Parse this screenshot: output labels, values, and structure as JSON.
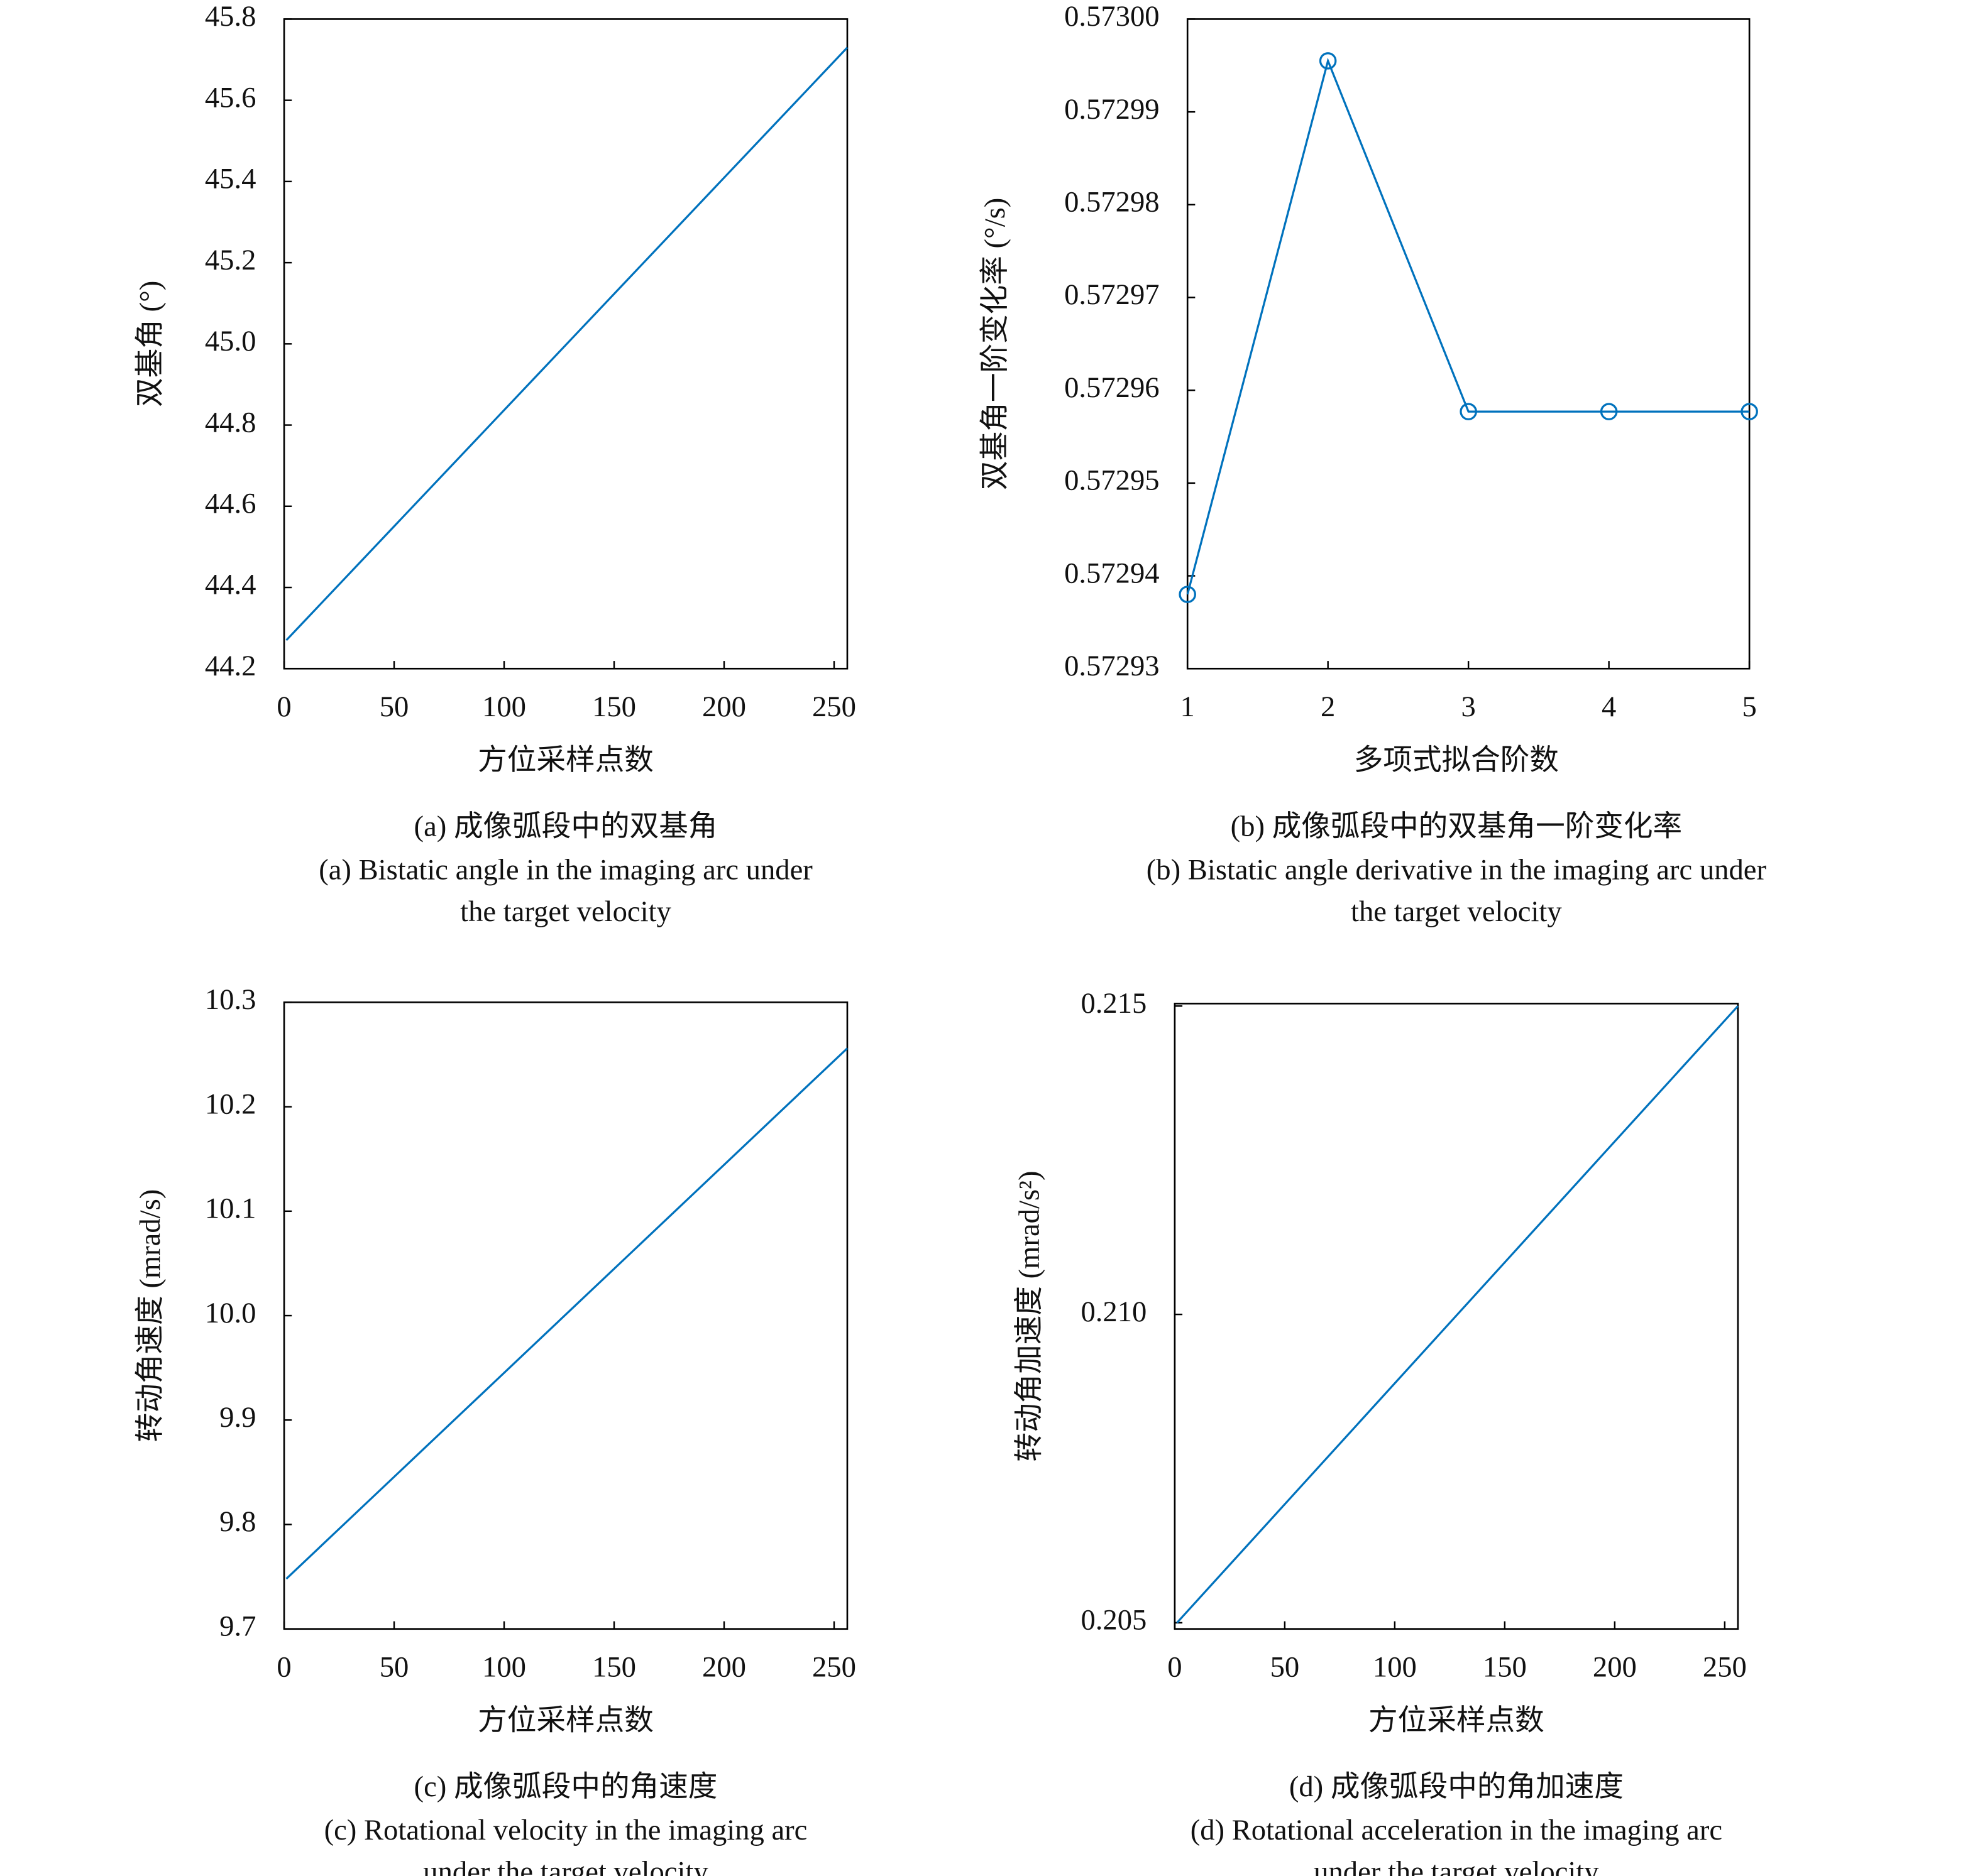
{
  "chart_data": [
    {
      "type": "line",
      "color": "#0072bd",
      "ylabel": "双基角 (°)",
      "xlabel": "方位采样点数",
      "caption_zh": "(a) 成像弧段中的双基角",
      "caption_en_lines": [
        "(a) Bistatic angle in the imaging arc under",
        "the target velocity"
      ],
      "x": [
        1,
        256
      ],
      "values": [
        44.27,
        45.73
      ],
      "xlim": [
        0,
        256
      ],
      "xticks": [
        0,
        50,
        100,
        150,
        200,
        250
      ],
      "ylim": [
        44.2,
        45.8
      ],
      "yticks": [
        44.2,
        44.4,
        44.6,
        44.8,
        {
          "value": 45,
          "label": "45.0"
        },
        45.2,
        45.4,
        45.6,
        45.8
      ]
    },
    {
      "type": "line",
      "marker": "circle",
      "color": "#0072bd",
      "ylabel": "双基角一阶变化率 (°/s)",
      "xlabel": "多项式拟合阶数",
      "caption_zh": "(b) 成像弧段中的双基角一阶变化率",
      "caption_en_lines": [
        "(b) Bistatic angle derivative in the imaging arc under",
        "the target velocity"
      ],
      "x": [
        1,
        2,
        3,
        4,
        5
      ],
      "values": [
        0.572938,
        0.5729955,
        0.5729577,
        0.5729577,
        0.5729577
      ],
      "xlim": [
        1,
        5
      ],
      "xticks": [
        1,
        2,
        3,
        4,
        5
      ],
      "ylim": [
        0.57293,
        0.573
      ],
      "yticks": [
        0.57293,
        0.57294,
        0.57295,
        0.57296,
        0.57297,
        0.57298,
        0.57299,
        {
          "value": 0.573,
          "label": "0.57300"
        }
      ]
    },
    {
      "type": "line",
      "color": "#0072bd",
      "ylabel": "转动角速度 (mrad/s)",
      "xlabel": "方位采样点数",
      "caption_zh": "(c) 成像弧段中的角速度",
      "caption_en_lines": [
        "(c) Rotational velocity in the imaging arc",
        "under the target velocity"
      ],
      "x": [
        1,
        256
      ],
      "values": [
        9.748,
        10.256
      ],
      "xlim": [
        0,
        256
      ],
      "xticks": [
        0,
        50,
        100,
        150,
        200,
        250
      ],
      "ylim": [
        9.7,
        10.3
      ],
      "yticks": [
        9.7,
        9.8,
        9.9,
        {
          "value": 10,
          "label": "10.0"
        },
        10.1,
        10.2,
        10.3
      ]
    },
    {
      "type": "line",
      "color": "#0072bd",
      "ylabel": "转动角加速度 (mrad/s²)",
      "xlabel": "方位采样点数",
      "caption_zh": "(d) 成像弧段中的角加速度",
      "caption_en_lines": [
        "(d) Rotational acceleration in the imaging arc",
        "under the target velocity"
      ],
      "x": [
        1,
        256
      ],
      "values": [
        0.205,
        0.215
      ],
      "xlim": [
        0,
        256
      ],
      "xticks": [
        0,
        50,
        100,
        150,
        200,
        250
      ],
      "ylim": [
        0.2049,
        0.21504
      ],
      "yticks": [
        0.205,
        {
          "value": 0.21,
          "label": "0.210"
        },
        0.215
      ]
    }
  ]
}
